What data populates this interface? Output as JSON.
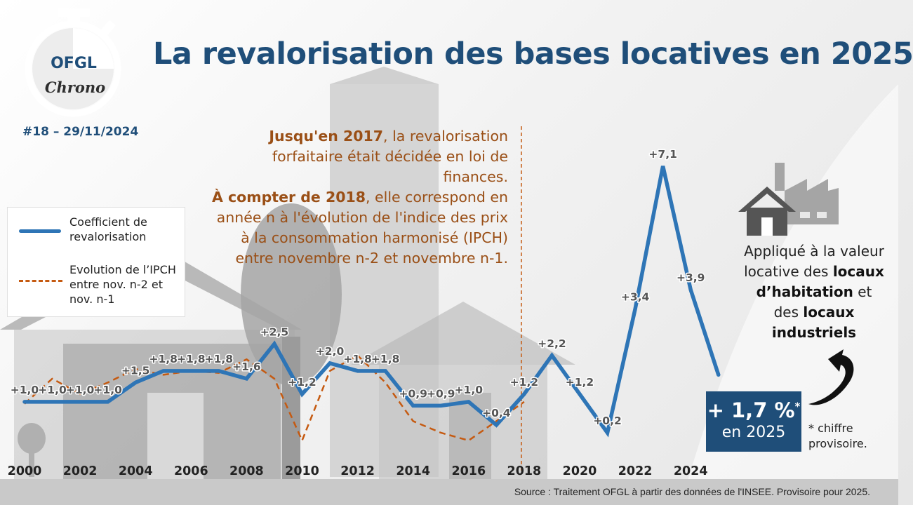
{
  "title": "La revalorisation des bases locatives en 2025",
  "logo": {
    "word": "OFGL",
    "sub": "Chrono"
  },
  "issue": "#18 – 29/11/2024",
  "note": {
    "p1_bold": "Jusqu'en 2017",
    "p1_rest": ", la revalorisation forfaitaire était décidée en loi de finances.",
    "p2_bold": "À compter de 2018",
    "p2_rest": ", elle correspond en année n à l'évolution de l'indice des prix à la consommation harmonisé (IPCH) entre novembre n-2 et novembre n-1."
  },
  "legend": {
    "line_label": "Coefficient de revalorisation",
    "dash_label": "Evolution de l’IPCH entre nov. n-2 et nov. n-1"
  },
  "applied": {
    "t1": "Appliqué à la valeur locative des ",
    "b1": "locaux d’habitation",
    "t2": " et des ",
    "b2": "locaux industriels"
  },
  "callout": {
    "value": "+ 1,7 %",
    "star": "*",
    "year_text": "en 2025"
  },
  "footnote": "* chiffre provisoire.",
  "source": "Source : Traitement OFGL à partir des données de l'INSEE. Provisoire pour 2025.",
  "colors": {
    "line": "#2e75b6",
    "dash": "#c55a11",
    "title": "#1f4e79"
  },
  "icons": [
    "stopwatch-icon",
    "house-factory-icon",
    "curved-arrow-icon"
  ],
  "chart_data": {
    "type": "line",
    "x": [
      2000,
      2001,
      2002,
      2003,
      2004,
      2005,
      2006,
      2007,
      2008,
      2009,
      2010,
      2011,
      2012,
      2013,
      2014,
      2015,
      2016,
      2017,
      2018,
      2019,
      2020,
      2021,
      2022,
      2023,
      2024,
      2025
    ],
    "x_ticks": [
      "2000",
      "2002",
      "2004",
      "2006",
      "2008",
      "2010",
      "2012",
      "2014",
      "2016",
      "2018",
      "2020",
      "2022",
      "2024"
    ],
    "series": [
      {
        "name": "Coefficient de revalorisation",
        "values": [
          1.0,
          1.0,
          1.0,
          1.0,
          1.5,
          1.8,
          1.8,
          1.8,
          1.6,
          2.5,
          1.2,
          2.0,
          1.8,
          1.8,
          0.9,
          0.9,
          1.0,
          0.4,
          1.2,
          2.2,
          1.2,
          0.2,
          3.4,
          7.1,
          3.9,
          1.7
        ],
        "labels": [
          "+1,0",
          "+1,0",
          "+1,0",
          "+1,0",
          "+1,5",
          "+1,8",
          "+1,8",
          "+1,8",
          "+1,6",
          "+2,5",
          "+1,2",
          "+2,0",
          "+1,8",
          "+1,8",
          "+0,9",
          "+0,9",
          "+1,0",
          "+0,4",
          "+1,2",
          "+2,2",
          "+1,2",
          "+0,2",
          "+3,4",
          "+7,1",
          "+3,9",
          ""
        ]
      },
      {
        "name": "Evolution de l’IPCH entre nov. n-2 et nov. n-1",
        "x": [
          2000,
          2001,
          2002,
          2003,
          2004,
          2005,
          2006,
          2007,
          2008,
          2009,
          2010,
          2011,
          2012,
          2013,
          2014,
          2015,
          2016,
          2017,
          2018
        ],
        "values": [
          0.95,
          1.6,
          1.2,
          1.5,
          1.85,
          1.7,
          1.8,
          1.75,
          2.1,
          1.6,
          0.0,
          1.8,
          2.2,
          1.5,
          0.5,
          0.2,
          0.0,
          0.5,
          1.0
        ]
      }
    ],
    "ylim": [
      0,
      7.5
    ],
    "grid": false,
    "legend_position": "left"
  }
}
